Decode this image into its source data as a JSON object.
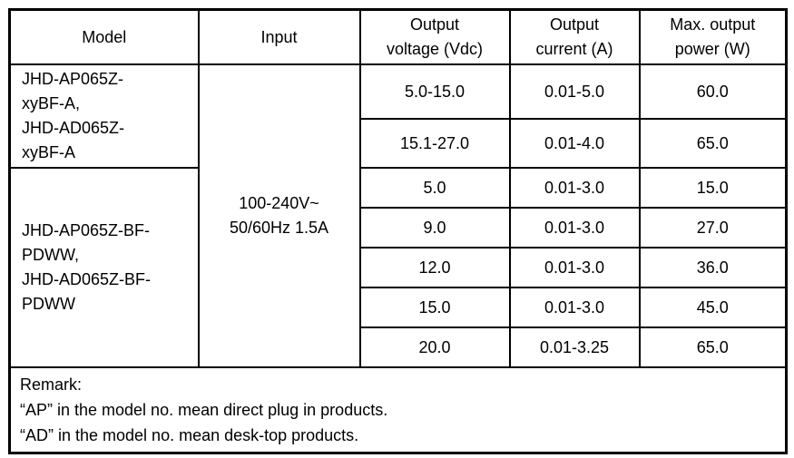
{
  "table": {
    "headers": {
      "model": "Model",
      "input": "Input",
      "voltage": "Output\nvoltage (Vdc)",
      "current": "Output\ncurrent (A)",
      "power": "Max. output\npower (W)"
    },
    "input_value": "100-240V~\n50/60Hz 1.5A",
    "groups": [
      {
        "model": "JHD-AP065Z-\nxyBF-A,\nJHD-AD065Z-\nxyBF-A",
        "rows": [
          {
            "voltage": "5.0-15.0",
            "current": "0.01-5.0",
            "power": "60.0"
          },
          {
            "voltage": "15.1-27.0",
            "current": "0.01-4.0",
            "power": "65.0"
          }
        ]
      },
      {
        "model": "JHD-AP065Z-BF-\nPDWW,\nJHD-AD065Z-BF-\nPDWW",
        "rows": [
          {
            "voltage": "5.0",
            "current": "0.01-3.0",
            "power": "15.0"
          },
          {
            "voltage": "9.0",
            "current": "0.01-3.0",
            "power": "27.0"
          },
          {
            "voltage": "12.0",
            "current": "0.01-3.0",
            "power": "36.0"
          },
          {
            "voltage": "15.0",
            "current": "0.01-3.0",
            "power": "45.0"
          },
          {
            "voltage": "20.0",
            "current": "0.01-3.25",
            "power": "65.0"
          }
        ]
      }
    ],
    "remark": "Remark:\n“AP” in the model no. mean direct plug in products.\n“AD” in the model no. mean desk-top products.",
    "colors": {
      "border": "#000000",
      "text": "#000000",
      "background": "#ffffff"
    }
  }
}
